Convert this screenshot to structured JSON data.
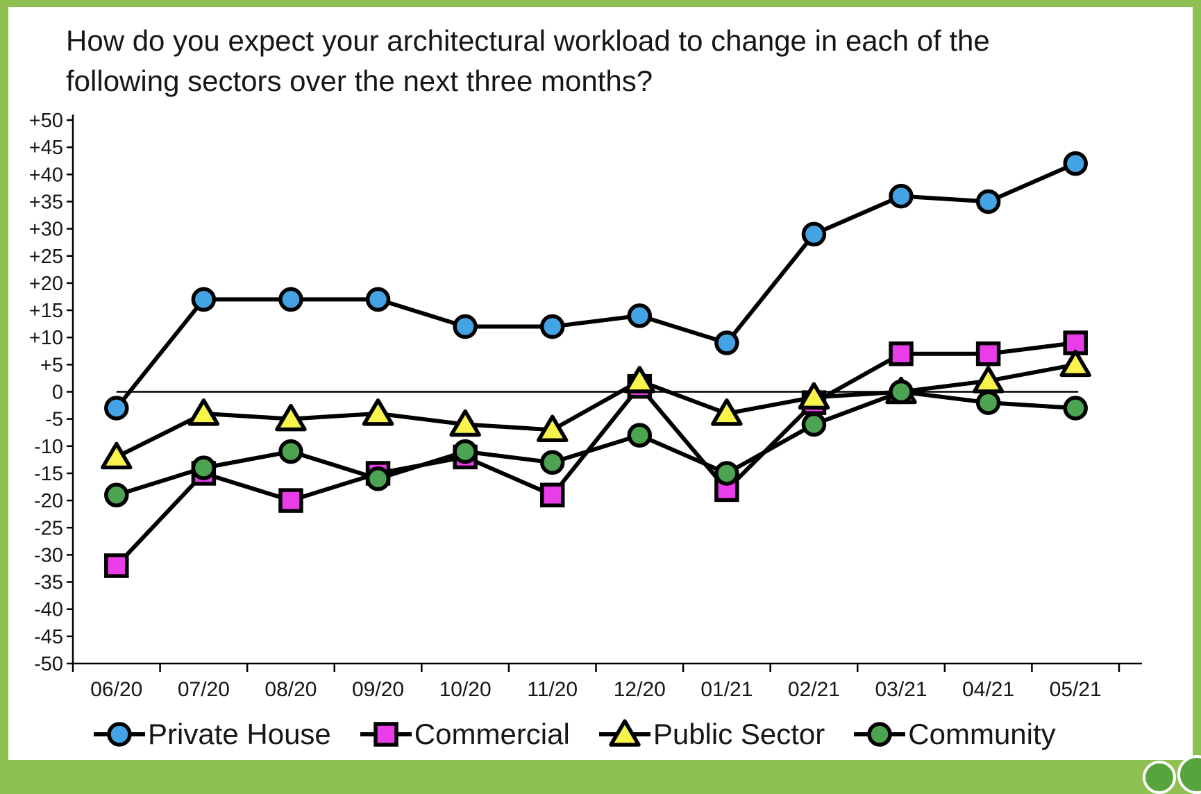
{
  "page": {
    "frame_color": "#8ec052",
    "card_background": "#ffffff"
  },
  "chart_data": {
    "type": "line",
    "title": "How do you expect your architectural workload to change in each of the following sectors over the next three months?",
    "x": [
      "06/20",
      "07/20",
      "08/20",
      "09/20",
      "10/20",
      "11/20",
      "12/20",
      "01/21",
      "02/21",
      "03/21",
      "04/21",
      "05/21"
    ],
    "series": [
      {
        "name": "Private House",
        "marker": "circle",
        "color": "#44a3e4",
        "values": [
          -3,
          17,
          17,
          17,
          12,
          12,
          14,
          9,
          29,
          36,
          35,
          42
        ]
      },
      {
        "name": "Commercial",
        "marker": "square",
        "color": "#e93de9",
        "values": [
          -32,
          -15,
          -20,
          -15,
          -12,
          -19,
          1,
          -18,
          -2,
          7,
          7,
          9
        ]
      },
      {
        "name": "Public Sector",
        "marker": "triangle",
        "color": "#f8f44c",
        "values": [
          -12,
          -4,
          -5,
          -4,
          -6,
          -7,
          2,
          -4,
          -1,
          0,
          2,
          5
        ]
      },
      {
        "name": "Community",
        "marker": "circle",
        "color": "#4ca351",
        "values": [
          -19,
          -14,
          -11,
          -16,
          -11,
          -13,
          -8,
          -15,
          -6,
          0,
          -2,
          -3
        ]
      }
    ],
    "ylim": [
      -50,
      50
    ],
    "ytick_step": 5,
    "ytick_labels": [
      "+50",
      "+45",
      "+40",
      "+35",
      "+30",
      "+25",
      "+20",
      "+15",
      "+10",
      "+5",
      "0",
      "-5",
      "-10",
      "-15",
      "-20",
      "-25",
      "-30",
      "-35",
      "-40",
      "-45",
      "-50"
    ],
    "xlabel": "",
    "ylabel": "",
    "grid": false,
    "zero_line": true,
    "line_color": "#000000",
    "legend_position": "bottom"
  }
}
